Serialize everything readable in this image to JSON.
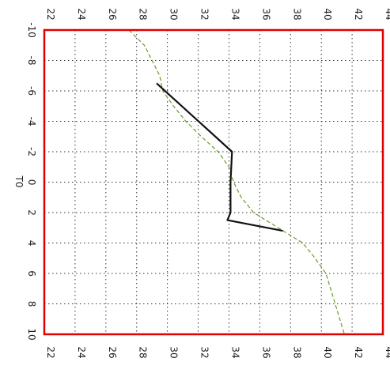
{
  "chart_data": {
    "type": "line",
    "title": "",
    "orientation": "rotated 90° clockwise: data x-axis runs top-to-bottom, data y-axis runs left-to-right",
    "xlabel": "T0",
    "ylabel": "",
    "xlim": [
      -10,
      10
    ],
    "ylim": [
      22,
      44
    ],
    "xticks": [
      "-10",
      "-8",
      "-6",
      "-4",
      "-2",
      "0",
      "2",
      "4",
      "6",
      "8",
      "10"
    ],
    "yticks": [
      "22",
      "24",
      "26",
      "28",
      "30",
      "32",
      "34",
      "36",
      "38",
      "40",
      "42",
      "44"
    ],
    "grid": true,
    "frame_color": "#e00000",
    "series": [
      {
        "style": "dashed",
        "color": "#6a9a2a",
        "x": [
          -10,
          -9,
          -8,
          -7,
          -6,
          -5,
          -4,
          -3,
          -2,
          -1,
          0,
          1,
          2,
          3,
          4,
          5,
          6,
          7,
          8,
          9,
          10
        ],
        "y": [
          27.5,
          28.5,
          29.0,
          29.5,
          29.7,
          30.4,
          31.2,
          32.2,
          33.3,
          34.0,
          34.3,
          34.8,
          35.6,
          37.2,
          38.8,
          39.6,
          40.3,
          40.6,
          40.9,
          41.2,
          41.5
        ]
      },
      {
        "style": "solid",
        "color": "#111111",
        "x": [
          -6.5,
          -2,
          0,
          2,
          2.5,
          3.2
        ],
        "y": [
          29.3,
          34.2,
          34.1,
          34.1,
          33.9,
          37.5
        ]
      }
    ]
  }
}
